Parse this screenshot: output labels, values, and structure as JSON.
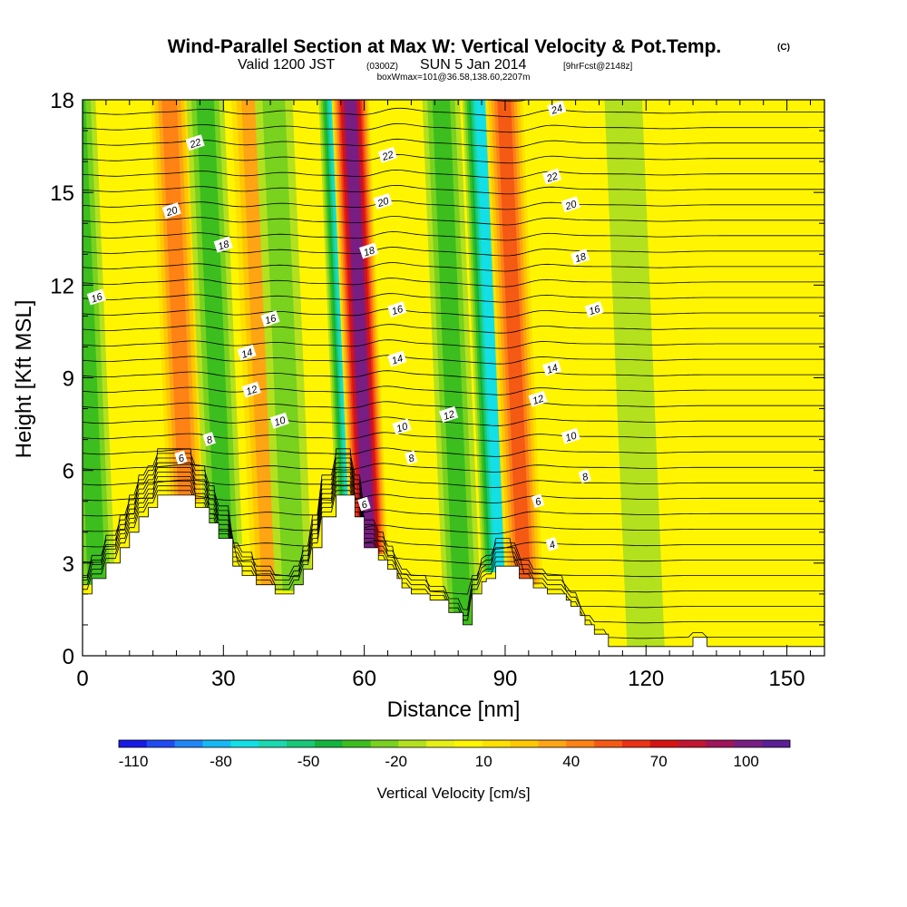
{
  "title": {
    "main": "Wind-Parallel Section at Max W: Vertical Velocity & Pot.Temp.",
    "copyright": "(C)",
    "valid_prefix": "Valid 1200 JST",
    "valid_utc": "(0300Z)",
    "valid_date": "SUN 5 Jan 2014",
    "forecast": "[9hrFcst@2148z]",
    "boxline": "boxWmax=101@36.58,138.60,2207m"
  },
  "chart_data": {
    "type": "heatmap",
    "xlabel": "Distance [nm]",
    "ylabel": "Height [Kft MSL]",
    "xlim": [
      0,
      158
    ],
    "ylim": [
      0,
      18
    ],
    "x_ticks": [
      0,
      30,
      60,
      90,
      120,
      150
    ],
    "y_ticks": [
      0,
      3,
      6,
      9,
      12,
      15,
      18
    ],
    "colorbar": {
      "label": "Vertical Velocity [cm/s]",
      "min": -115,
      "max": 115,
      "tick_labels": [
        -110,
        -80,
        -50,
        -20,
        10,
        40,
        70,
        100
      ],
      "colors": [
        "#1919e6",
        "#1f4cf2",
        "#1f86f7",
        "#14b9f5",
        "#12e0e6",
        "#19d9b0",
        "#19c878",
        "#12b43c",
        "#3cbe1e",
        "#78d21e",
        "#b4e11e",
        "#e6f014",
        "#fff500",
        "#ffe100",
        "#ffc800",
        "#ffa514",
        "#ff8214",
        "#f55a14",
        "#eb3214",
        "#d71414",
        "#c31432",
        "#a0145a",
        "#781e82",
        "#5a1e96"
      ]
    },
    "terrain_profile": {
      "x": [
        0,
        2,
        2,
        5,
        5,
        8,
        8,
        10,
        10,
        12,
        12,
        14,
        14,
        16,
        16,
        18,
        18,
        24,
        24,
        27,
        27,
        29,
        29,
        32,
        32,
        34,
        34,
        37,
        37,
        41,
        41,
        45,
        45,
        47,
        47,
        49,
        49,
        51,
        51,
        54,
        54,
        57,
        57,
        58,
        58,
        60,
        60,
        63,
        63,
        65,
        65,
        67,
        67,
        68,
        68,
        70,
        70,
        74,
        74,
        78,
        78,
        81,
        81,
        83,
        83,
        85,
        85,
        86,
        86,
        88,
        88,
        93,
        93,
        96,
        96,
        99,
        99,
        103,
        103,
        104,
        104,
        106,
        106,
        107,
        107,
        109,
        109,
        112,
        112,
        116,
        116,
        125,
        125,
        130,
        130,
        133,
        133,
        145,
        145,
        148,
        148,
        158
      ],
      "h": [
        2.0,
        2.0,
        2.5,
        2.5,
        3.0,
        3.0,
        3.5,
        3.5,
        4.0,
        4.0,
        4.5,
        4.5,
        4.8,
        4.8,
        5.2,
        5.2,
        5.2,
        5.2,
        4.8,
        4.8,
        4.3,
        4.3,
        3.8,
        3.8,
        2.9,
        2.9,
        2.6,
        2.6,
        2.3,
        2.3,
        2.0,
        2.0,
        2.3,
        2.3,
        2.8,
        2.8,
        3.5,
        3.5,
        4.5,
        4.5,
        5.2,
        5.2,
        5.2,
        5.2,
        4.5,
        4.5,
        3.5,
        3.5,
        3.1,
        3.1,
        2.8,
        2.8,
        2.5,
        2.5,
        2.2,
        2.2,
        2.0,
        2.0,
        1.8,
        1.8,
        1.4,
        1.4,
        1.0,
        1.0,
        2.0,
        2.0,
        2.4,
        2.4,
        2.5,
        2.5,
        2.9,
        2.9,
        2.5,
        2.5,
        2.2,
        2.2,
        2.0,
        2.0,
        1.8,
        1.8,
        1.6,
        1.6,
        1.3,
        1.3,
        1.0,
        1.0,
        0.7,
        0.7,
        0.3,
        0.3,
        0.3,
        0.3,
        0.3,
        0.3,
        0.6,
        0.6,
        0.3,
        0.3,
        0.3,
        0.3,
        0.3,
        0.3
      ]
    },
    "theta_contours": [
      {
        "label": "4",
        "label_x": 100,
        "label_y": 3.6
      },
      {
        "label": "6",
        "label_x": 21,
        "label_y": 6.4
      },
      {
        "label": "6",
        "label_x": 60,
        "label_y": 4.9
      },
      {
        "label": "6",
        "label_x": 97,
        "label_y": 5.0
      },
      {
        "label": "8",
        "label_x": 27,
        "label_y": 7.0
      },
      {
        "label": "8",
        "label_x": 70,
        "label_y": 6.4
      },
      {
        "label": "8",
        "label_x": 107,
        "label_y": 5.8
      },
      {
        "label": "10",
        "label_x": 42,
        "label_y": 7.6
      },
      {
        "label": "10",
        "label_x": 68,
        "label_y": 7.4
      },
      {
        "label": "10",
        "label_x": 104,
        "label_y": 7.1
      },
      {
        "label": "12",
        "label_x": 36,
        "label_y": 8.6
      },
      {
        "label": "12",
        "label_x": 78,
        "label_y": 7.8
      },
      {
        "label": "12",
        "label_x": 97,
        "label_y": 8.3
      },
      {
        "label": "14",
        "label_x": 35,
        "label_y": 9.8
      },
      {
        "label": "14",
        "label_x": 67,
        "label_y": 9.6
      },
      {
        "label": "14",
        "label_x": 100,
        "label_y": 9.3
      },
      {
        "label": "16",
        "label_x": 3,
        "label_y": 11.6
      },
      {
        "label": "16",
        "label_x": 40,
        "label_y": 10.9
      },
      {
        "label": "16",
        "label_x": 67,
        "label_y": 11.2
      },
      {
        "label": "16",
        "label_x": 109,
        "label_y": 11.2
      },
      {
        "label": "18",
        "label_x": 30,
        "label_y": 13.3
      },
      {
        "label": "18",
        "label_x": 61,
        "label_y": 13.1
      },
      {
        "label": "18",
        "label_x": 106,
        "label_y": 12.9
      },
      {
        "label": "20",
        "label_x": 19,
        "label_y": 14.4
      },
      {
        "label": "20",
        "label_x": 64,
        "label_y": 14.7
      },
      {
        "label": "20",
        "label_x": 104,
        "label_y": 14.6
      },
      {
        "label": "22",
        "label_x": 24,
        "label_y": 16.6
      },
      {
        "label": "22",
        "label_x": 65,
        "label_y": 16.2
      },
      {
        "label": "22",
        "label_x": 100,
        "label_y": 15.5
      },
      {
        "label": "24",
        "label_x": 101,
        "label_y": 17.7
      }
    ],
    "w_bands": [
      {
        "x": 3,
        "kind": "down",
        "peak": -30
      },
      {
        "x": 22,
        "kind": "up",
        "peak": 40
      },
      {
        "x": 30,
        "kind": "down",
        "peak": -30
      },
      {
        "x": 40,
        "kind": "up",
        "peak": 30
      },
      {
        "x": 45,
        "kind": "down",
        "peak": -25
      },
      {
        "x": 58,
        "kind": "down",
        "peak": -85
      },
      {
        "x": 61,
        "kind": "up",
        "peak": 101
      },
      {
        "x": 81,
        "kind": "down",
        "peak": -30
      },
      {
        "x": 89,
        "kind": "down",
        "peak": -70
      },
      {
        "x": 94,
        "kind": "up",
        "peak": 50
      },
      {
        "x": 120,
        "kind": "down",
        "peak": -15
      }
    ]
  }
}
